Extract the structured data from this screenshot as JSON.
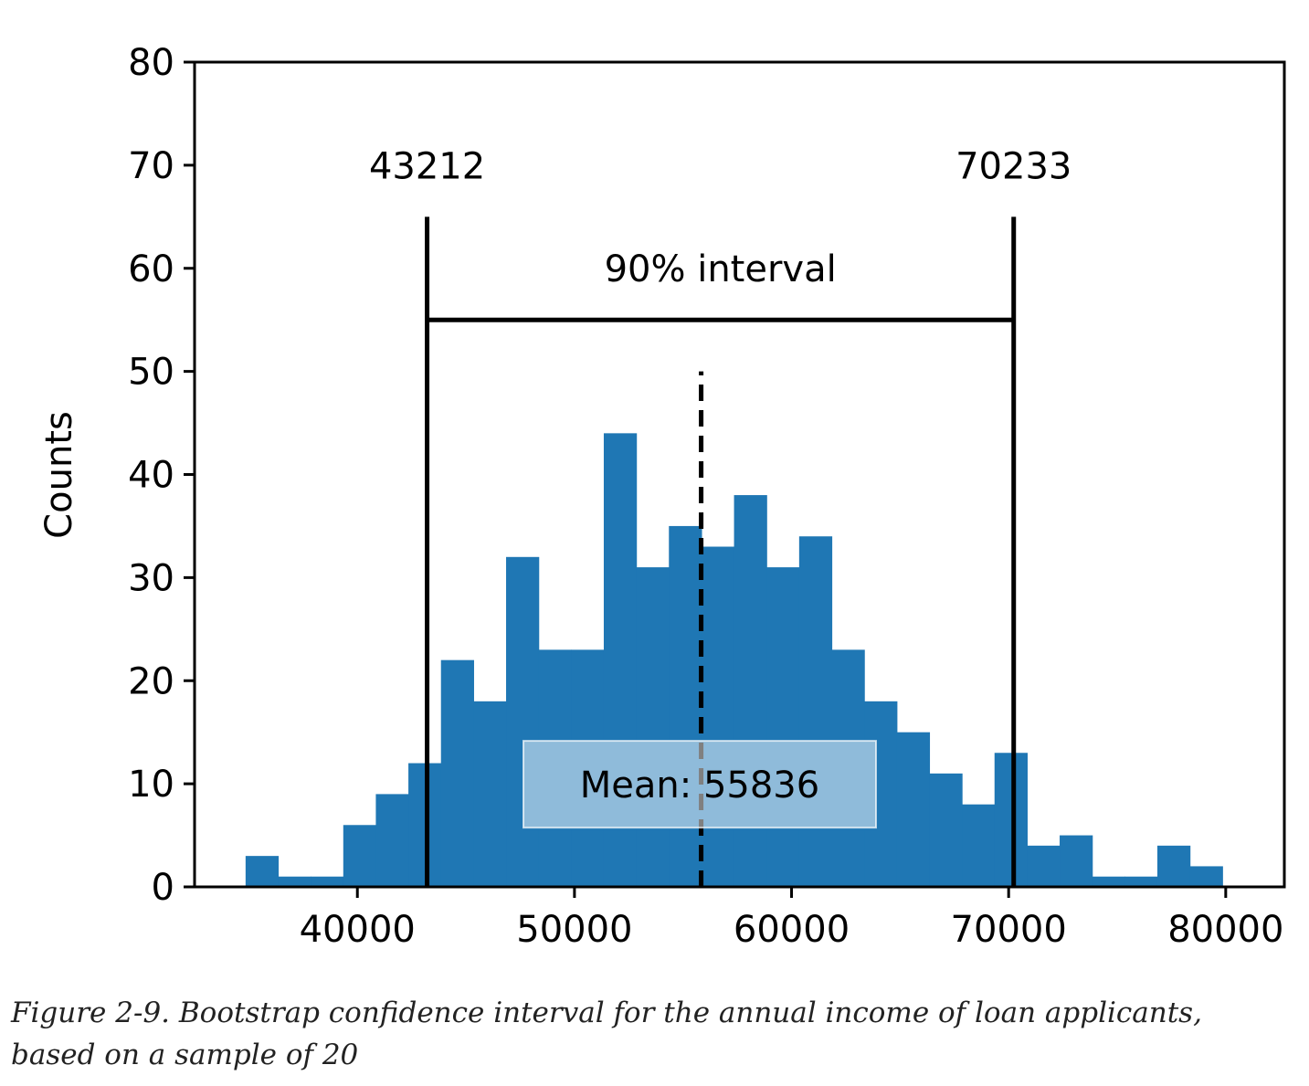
{
  "chart_data": {
    "type": "bar",
    "ylabel": "Counts",
    "xlim": [
      32500,
      82700
    ],
    "ylim": [
      0,
      80
    ],
    "xticks": [
      40000,
      50000,
      60000,
      70000,
      80000
    ],
    "yticks": [
      0,
      10,
      20,
      30,
      40,
      50,
      60,
      70,
      80
    ],
    "bar_color": "#1f77b4",
    "bin_start": 34850,
    "bin_width": 1500,
    "values": [
      3,
      1,
      1,
      6,
      9,
      12,
      22,
      18,
      32,
      23,
      23,
      44,
      31,
      35,
      33,
      38,
      31,
      34,
      23,
      18,
      15,
      11,
      8,
      13,
      4,
      5,
      1,
      1,
      4,
      2
    ],
    "interval": {
      "lower": 43212,
      "upper": 70233,
      "lower_label": "43212",
      "upper_label": "70233",
      "label": "90% interval",
      "line_top": 65,
      "bar_level": 55
    },
    "mean": {
      "value": 55836,
      "label": "Mean: 55836",
      "line_top": 50,
      "label_y": 10
    }
  },
  "caption": {
    "line1": "Figure 2-9. Bootstrap confidence interval for the annual income of loan applicants,",
    "line2": "based on a sample of 20"
  }
}
